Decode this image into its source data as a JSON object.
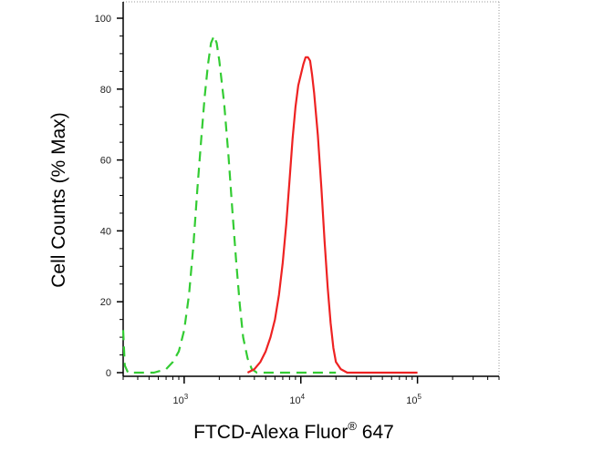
{
  "chart_data": {
    "type": "line",
    "title": "",
    "xlabel": "FTCD-Alexa Fluor",
    "xlabel_superscript": "®",
    "xlabel_suffix": " 647",
    "ylabel": "Cell Counts (% Max)",
    "x_scale": "log",
    "xlim": [
      300,
      500000
    ],
    "ylim": [
      0,
      100
    ],
    "y_ticks": [
      "0",
      "20",
      "40",
      "60",
      "80",
      "100"
    ],
    "x_ticks": [
      {
        "value": 1000,
        "base": "10",
        "exp": "3"
      },
      {
        "value": 10000,
        "base": "10",
        "exp": "4"
      },
      {
        "value": 100000,
        "base": "10",
        "exp": "5"
      }
    ],
    "grid": false,
    "legend": "none",
    "series": [
      {
        "color": "#33cc33",
        "style": "dashed",
        "points": [
          [
            300,
            12
          ],
          [
            310,
            2
          ],
          [
            330,
            0
          ],
          [
            400,
            0
          ],
          [
            550,
            0
          ],
          [
            700,
            1
          ],
          [
            800,
            3
          ],
          [
            900,
            6
          ],
          [
            1000,
            12
          ],
          [
            1100,
            22
          ],
          [
            1200,
            36
          ],
          [
            1300,
            52
          ],
          [
            1400,
            66
          ],
          [
            1500,
            78
          ],
          [
            1600,
            87
          ],
          [
            1700,
            93
          ],
          [
            1800,
            95
          ],
          [
            1900,
            93
          ],
          [
            2000,
            88
          ],
          [
            2200,
            76
          ],
          [
            2400,
            61
          ],
          [
            2600,
            45
          ],
          [
            2800,
            31
          ],
          [
            3000,
            19
          ],
          [
            3200,
            10
          ],
          [
            3500,
            4
          ],
          [
            3800,
            1
          ],
          [
            4200,
            0
          ],
          [
            10000,
            0
          ],
          [
            20000,
            0
          ]
        ]
      },
      {
        "color": "#ee2222",
        "style": "solid",
        "points": [
          [
            3500,
            0
          ],
          [
            4000,
            1
          ],
          [
            4500,
            3
          ],
          [
            5000,
            6
          ],
          [
            5500,
            10
          ],
          [
            6000,
            15
          ],
          [
            6500,
            22
          ],
          [
            7000,
            31
          ],
          [
            7500,
            42
          ],
          [
            8000,
            54
          ],
          [
            8500,
            66
          ],
          [
            9000,
            75
          ],
          [
            9500,
            81
          ],
          [
            10000,
            84
          ],
          [
            10500,
            87
          ],
          [
            11000,
            89
          ],
          [
            11500,
            89
          ],
          [
            12000,
            88
          ],
          [
            12500,
            84
          ],
          [
            13000,
            79
          ],
          [
            14000,
            67
          ],
          [
            15000,
            52
          ],
          [
            16000,
            37
          ],
          [
            17000,
            24
          ],
          [
            18000,
            14
          ],
          [
            19000,
            7
          ],
          [
            20000,
            3
          ],
          [
            22000,
            1
          ],
          [
            25000,
            0
          ],
          [
            40000,
            0
          ],
          [
            100000,
            0
          ]
        ]
      }
    ]
  }
}
